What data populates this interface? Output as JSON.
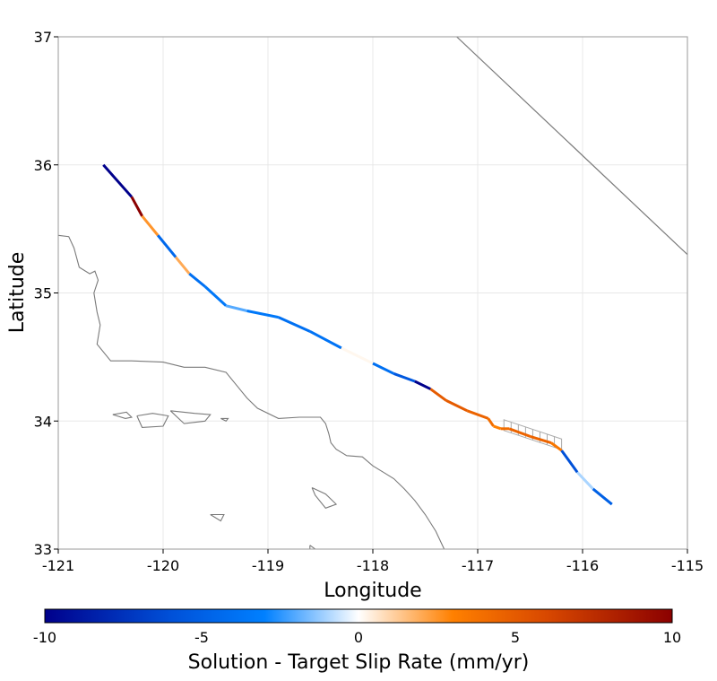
{
  "map": {
    "xlabel": "Longitude",
    "ylabel": "Latitude",
    "xlim": [
      -121,
      -115
    ],
    "ylim": [
      33,
      37
    ],
    "x_ticks": [
      -121,
      -120,
      -119,
      -118,
      -117,
      -116,
      -115
    ],
    "y_ticks": [
      33,
      34,
      35,
      36,
      37
    ],
    "x_tick_labels": [
      "-121",
      "-120",
      "-119",
      "-118",
      "-117",
      "-116",
      "-115"
    ],
    "y_tick_labels": [
      "33",
      "34",
      "35",
      "36",
      "37"
    ],
    "grid": true,
    "colors": {
      "coast": "#7a7a7a",
      "grid": "#e8e8e8",
      "frame": "#999999"
    }
  },
  "boundary_line": {
    "points": [
      [
        -117.2,
        37.0
      ],
      [
        -115.0,
        35.3
      ]
    ]
  },
  "coastline": {
    "mainland": [
      [
        -121.0,
        35.45
      ],
      [
        -120.9,
        35.44
      ],
      [
        -120.85,
        35.35
      ],
      [
        -120.8,
        35.2
      ],
      [
        -120.7,
        35.15
      ],
      [
        -120.65,
        35.17
      ],
      [
        -120.62,
        35.1
      ],
      [
        -120.66,
        35.0
      ],
      [
        -120.63,
        34.85
      ],
      [
        -120.6,
        34.75
      ],
      [
        -120.63,
        34.6
      ],
      [
        -120.5,
        34.47
      ],
      [
        -120.3,
        34.47
      ],
      [
        -120.0,
        34.46
      ],
      [
        -119.8,
        34.42
      ],
      [
        -119.6,
        34.42
      ],
      [
        -119.4,
        34.38
      ],
      [
        -119.3,
        34.28
      ],
      [
        -119.2,
        34.18
      ],
      [
        -119.1,
        34.1
      ],
      [
        -118.9,
        34.02
      ],
      [
        -118.7,
        34.03
      ],
      [
        -118.5,
        34.03
      ],
      [
        -118.45,
        33.98
      ],
      [
        -118.42,
        33.9
      ],
      [
        -118.4,
        33.83
      ],
      [
        -118.35,
        33.78
      ],
      [
        -118.25,
        33.73
      ],
      [
        -118.1,
        33.72
      ],
      [
        -118.0,
        33.65
      ],
      [
        -117.9,
        33.6
      ],
      [
        -117.8,
        33.55
      ],
      [
        -117.7,
        33.47
      ],
      [
        -117.6,
        33.38
      ],
      [
        -117.5,
        33.27
      ],
      [
        -117.4,
        33.14
      ],
      [
        -117.32,
        33.0
      ]
    ],
    "islands": [
      [
        [
          -120.48,
          34.05
        ],
        [
          -120.35,
          34.07
        ],
        [
          -120.3,
          34.03
        ],
        [
          -120.36,
          34.02
        ],
        [
          -120.48,
          34.05
        ]
      ],
      [
        [
          -120.25,
          34.04
        ],
        [
          -120.1,
          34.06
        ],
        [
          -119.95,
          34.04
        ],
        [
          -120.0,
          33.96
        ],
        [
          -120.2,
          33.95
        ],
        [
          -120.25,
          34.04
        ]
      ],
      [
        [
          -119.93,
          34.08
        ],
        [
          -119.7,
          34.06
        ],
        [
          -119.55,
          34.05
        ],
        [
          -119.6,
          34.0
        ],
        [
          -119.8,
          33.98
        ],
        [
          -119.93,
          34.08
        ]
      ],
      [
        [
          -119.45,
          34.02
        ],
        [
          -119.38,
          34.02
        ],
        [
          -119.4,
          34.0
        ],
        [
          -119.45,
          34.02
        ]
      ],
      [
        [
          -118.58,
          33.48
        ],
        [
          -118.45,
          33.43
        ],
        [
          -118.35,
          33.35
        ],
        [
          -118.45,
          33.32
        ],
        [
          -118.55,
          33.42
        ],
        [
          -118.58,
          33.48
        ]
      ],
      [
        [
          -119.55,
          33.27
        ],
        [
          -119.42,
          33.27
        ],
        [
          -119.45,
          33.22
        ],
        [
          -119.55,
          33.27
        ]
      ],
      [
        [
          -118.6,
          33.03
        ],
        [
          -118.55,
          33.0
        ],
        [
          -118.6,
          33.0
        ],
        [
          -118.6,
          33.03
        ]
      ]
    ]
  },
  "fault": {
    "points": [
      [
        -120.57,
        36.0
      ],
      [
        -120.3,
        35.75
      ],
      [
        -120.2,
        35.6
      ],
      [
        -120.05,
        35.45
      ],
      [
        -119.88,
        35.28
      ],
      [
        -119.75,
        35.15
      ],
      [
        -119.6,
        35.05
      ],
      [
        -119.4,
        34.9
      ],
      [
        -119.2,
        34.86
      ],
      [
        -118.9,
        34.81
      ],
      [
        -118.6,
        34.7
      ],
      [
        -118.3,
        34.57
      ],
      [
        -118.0,
        34.45
      ],
      [
        -117.8,
        34.37
      ],
      [
        -117.6,
        34.31
      ],
      [
        -117.45,
        34.25
      ],
      [
        -117.3,
        34.16
      ],
      [
        -117.1,
        34.08
      ],
      [
        -116.9,
        34.02
      ],
      [
        -116.85,
        33.96
      ],
      [
        -116.78,
        33.94
      ],
      [
        -116.7,
        33.94
      ],
      [
        -116.5,
        33.88
      ],
      [
        -116.3,
        33.83
      ],
      [
        -116.2,
        33.77
      ],
      [
        -116.05,
        33.6
      ],
      [
        -115.9,
        33.47
      ],
      [
        -115.72,
        33.35
      ]
    ],
    "segment_values": [
      -10,
      10,
      2.5,
      -4.5,
      2.0,
      -4.0,
      -3.5,
      -2.0,
      -3.5,
      -4.0,
      -3.8,
      0.2,
      -4.0,
      -5.5,
      -10.0,
      5.0,
      5.0,
      4.5,
      4.0,
      3.0,
      4.0,
      4.5,
      4.5,
      3.5,
      -6.0,
      -1.0,
      -5.0
    ],
    "stepover_box": [
      [
        -116.75,
        34.01
      ],
      [
        -116.2,
        33.86
      ]
    ]
  },
  "colorbar": {
    "label": "Solution - Target Slip Rate (mm/yr)",
    "min": -10,
    "max": 10,
    "ticks": [
      -10,
      -5,
      0,
      5,
      10
    ],
    "tick_labels": [
      "-10",
      "-5",
      "0",
      "5",
      "10"
    ],
    "stops": [
      {
        "value": -10,
        "color": "#00008b"
      },
      {
        "value": -6,
        "color": "#0050d8"
      },
      {
        "value": -3,
        "color": "#0080ff"
      },
      {
        "value": 0,
        "color": "#ffffff"
      },
      {
        "value": 3,
        "color": "#ff8000"
      },
      {
        "value": 6,
        "color": "#d84800"
      },
      {
        "value": 10,
        "color": "#8b0000"
      }
    ]
  }
}
